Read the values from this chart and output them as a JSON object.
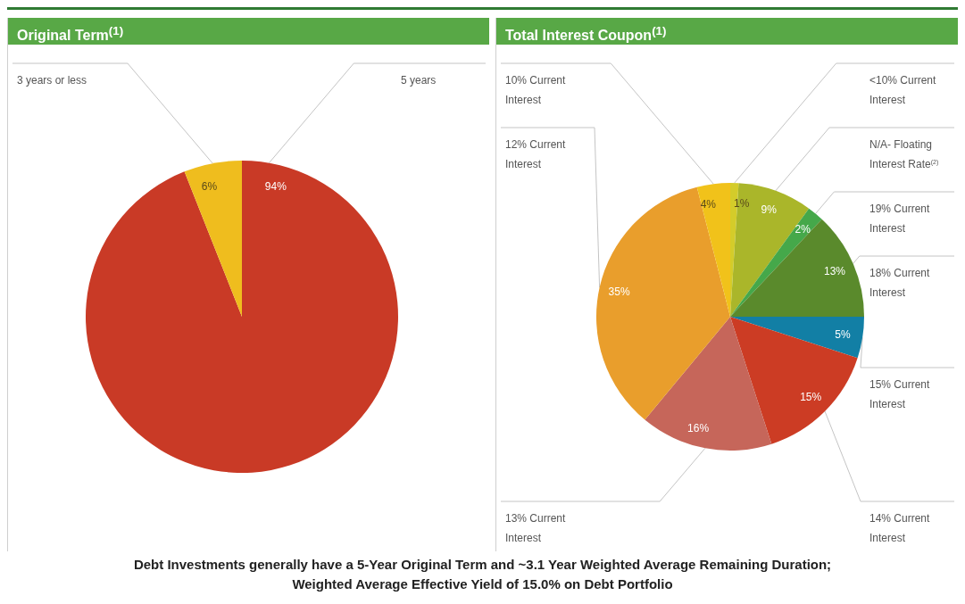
{
  "chart_data": [
    {
      "type": "pie",
      "title": "Original Term$^{(1)}$",
      "categories": [
        "5 years",
        "3 years or less"
      ],
      "values": [
        94,
        6
      ],
      "colors": [
        "#c93a26",
        "#efbd1e"
      ],
      "value_labels": [
        "94%",
        "6%"
      ]
    },
    {
      "type": "pie",
      "title": "Total Interest Coupon$^{(1)}$",
      "categories": [
        "<10% Current Interest",
        "N/A- Floating Interest Rate$^{(2)}$",
        "19% Current Interest",
        "18% Current Interest",
        "15% Current Interest",
        "14% Current Interest",
        "13% Current Interest",
        "12% Current Interest",
        "10% Current Interest"
      ],
      "values": [
        1,
        9,
        2,
        13,
        5,
        15,
        16,
        35,
        4
      ],
      "colors": [
        "#d4cc2a",
        "#aab62a",
        "#45a84a",
        "#5a8a2c",
        "#127fa5",
        "#cc3c24",
        "#c6665a",
        "#e99e2c",
        "#f1c21a"
      ],
      "value_labels": [
        "1%",
        "9%",
        "2%",
        "13%",
        "5%",
        "15%",
        "16%",
        "35%",
        "4%"
      ],
      "annotations": [
        "Debt Investments generally have a 5-Year Original Term and ~3.1 Year Weighted Average Remaining Duration;",
        "Weighted Average Effective Yield of 15.0% on Debt Portfolio"
      ]
    }
  ]
}
